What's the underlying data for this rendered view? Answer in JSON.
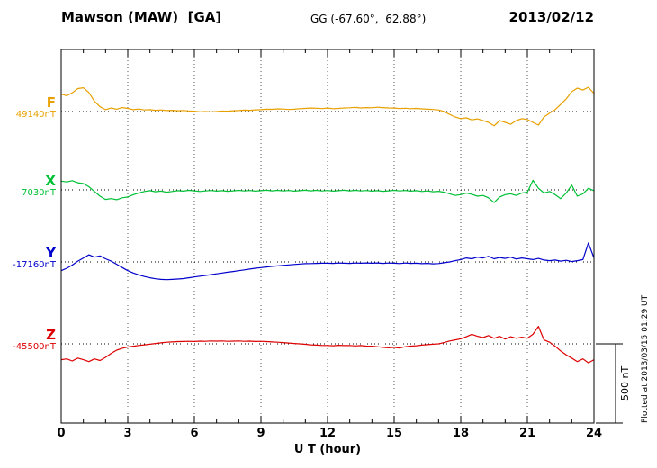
{
  "header": {
    "station": "Mawson (MAW)  [GA]",
    "coords": "GG (-67.60°,  62.88°)",
    "date": "2013/02/12"
  },
  "side_note": "Plotted at 2013/03/15 01:29 UT",
  "scale_bar": {
    "label": "500 nT",
    "nT": 500
  },
  "xaxis": {
    "label": "U T (hour)",
    "ticks": [
      0,
      3,
      6,
      9,
      12,
      15,
      18,
      21,
      24
    ],
    "range": [
      0,
      24
    ]
  },
  "channels": [
    {
      "id": "F",
      "label": "F",
      "value_label": "49140nT",
      "baseline_nT": 49140,
      "color": "#e8a000"
    },
    {
      "id": "X",
      "label": "X",
      "value_label": "7030nT",
      "baseline_nT": 7030,
      "color": "#00c035"
    },
    {
      "id": "Y",
      "label": "Y",
      "value_label": "-17160nT",
      "baseline_nT": -17160,
      "color": "#0000cc"
    },
    {
      "id": "Z",
      "label": "Z",
      "value_label": "-45500nT",
      "baseline_nT": -45500,
      "color": "#dd0000"
    }
  ],
  "chart_data": {
    "type": "line",
    "title": "Mawson (MAW) [GA] magnetogram 2013/02/12",
    "xlabel": "U T (hour)",
    "xlim": [
      0,
      24
    ],
    "units": "nT",
    "scale_bar_nT": 500,
    "x_step_hours": 0.25,
    "series": [
      {
        "name": "F",
        "baseline_nT": 49140,
        "offsets_nT": [
          110,
          100,
          118,
          145,
          150,
          120,
          65,
          30,
          12,
          22,
          15,
          25,
          20,
          12,
          16,
          10,
          12,
          8,
          10,
          6,
          8,
          5,
          7,
          4,
          2,
          -2,
          0,
          -3,
          0,
          3,
          2,
          5,
          6,
          9,
          8,
          11,
          12,
          15,
          14,
          17,
          16,
          13,
          15,
          18,
          20,
          22,
          21,
          19,
          22,
          18,
          20,
          23,
          24,
          26,
          23,
          25,
          24,
          27,
          25,
          23,
          22,
          19,
          21,
          18,
          20,
          17,
          15,
          13,
          10,
          0,
          -18,
          -34,
          -45,
          -40,
          -52,
          -46,
          -57,
          -68,
          -90,
          -57,
          -68,
          -80,
          -57,
          -45,
          -50,
          -68,
          -85,
          -34,
          -10,
          12,
          45,
          80,
          125,
          148,
          136,
          153,
          114
        ]
      },
      {
        "name": "X",
        "baseline_nT": 7030,
        "offsets_nT": [
          55,
          50,
          58,
          45,
          40,
          20,
          -10,
          -40,
          -60,
          -55,
          -62,
          -50,
          -45,
          -30,
          -20,
          -10,
          -5,
          -12,
          -8,
          -15,
          -10,
          -5,
          -8,
          -3,
          -6,
          -10,
          -7,
          -4,
          -8,
          -5,
          -9,
          -6,
          -3,
          -7,
          -4,
          -8,
          -5,
          -2,
          -6,
          -3,
          -7,
          -4,
          -8,
          -5,
          -2,
          -6,
          -3,
          -7,
          -4,
          -8,
          -5,
          -2,
          -6,
          -3,
          -7,
          -4,
          -8,
          -5,
          -9,
          -6,
          -3,
          -7,
          -4,
          -8,
          -5,
          -10,
          -7,
          -12,
          -9,
          -15,
          -25,
          -35,
          -30,
          -20,
          -28,
          -40,
          -35,
          -50,
          -80,
          -45,
          -30,
          -25,
          -35,
          -20,
          -15,
          60,
          10,
          -20,
          -10,
          -30,
          -55,
          -20,
          30,
          -40,
          -25,
          10,
          -5
        ]
      },
      {
        "name": "Y",
        "baseline_nT": -17160,
        "offsets_nT": [
          -55,
          -40,
          -20,
          5,
          25,
          45,
          30,
          38,
          20,
          5,
          -15,
          -35,
          -55,
          -70,
          -82,
          -92,
          -100,
          -106,
          -110,
          -112,
          -110,
          -108,
          -105,
          -100,
          -95,
          -90,
          -85,
          -80,
          -75,
          -70,
          -65,
          -60,
          -55,
          -50,
          -45,
          -40,
          -36,
          -32,
          -28,
          -25,
          -22,
          -19,
          -16,
          -13,
          -11,
          -10,
          -9,
          -8,
          -8,
          -9,
          -7,
          -8,
          -9,
          -7,
          -8,
          -6,
          -8,
          -6,
          -9,
          -7,
          -8,
          -10,
          -7,
          -9,
          -8,
          -11,
          -9,
          -12,
          -10,
          -5,
          0,
          8,
          15,
          25,
          20,
          30,
          25,
          35,
          20,
          28,
          22,
          30,
          18,
          25,
          20,
          15,
          22,
          12,
          8,
          12,
          5,
          10,
          2,
          8,
          15,
          120,
          25
        ]
      },
      {
        "name": "Z",
        "baseline_nT": -45500,
        "offsets_nT": [
          -100,
          -95,
          -108,
          -90,
          -100,
          -112,
          -95,
          -105,
          -85,
          -60,
          -40,
          -28,
          -20,
          -15,
          -10,
          -6,
          -2,
          2,
          6,
          10,
          12,
          14,
          15,
          16,
          15,
          17,
          16,
          18,
          17,
          18,
          16,
          17,
          18,
          16,
          17,
          15,
          16,
          14,
          12,
          10,
          8,
          5,
          2,
          0,
          -3,
          -6,
          -8,
          -10,
          -10,
          -12,
          -9,
          -11,
          -10,
          -13,
          -11,
          -14,
          -15,
          -18,
          -22,
          -25,
          -22,
          -26,
          -18,
          -14,
          -12,
          -8,
          -5,
          -2,
          0,
          8,
          18,
          25,
          32,
          45,
          60,
          48,
          40,
          52,
          35,
          48,
          30,
          45,
          35,
          42,
          35,
          60,
          110,
          25,
          10,
          -15,
          -45,
          -70,
          -90,
          -112,
          -95,
          -120,
          -100
        ]
      }
    ]
  }
}
